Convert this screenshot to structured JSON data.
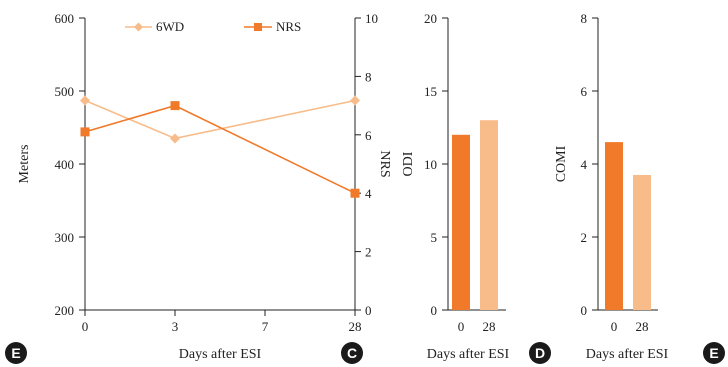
{
  "colors": {
    "dark_orange": "#F07A2A",
    "light_orange": "#F8BC8A",
    "badge": "#1a1a1a",
    "axis": "#222222"
  },
  "chart_data": [
    {
      "id": "line",
      "type": "line",
      "title": "",
      "xlabel": "Days after ESI",
      "ylabel": "Meters",
      "y2label": "NRS",
      "categories": [
        "0",
        "3",
        "7",
        "28"
      ],
      "ylim": [
        200,
        600
      ],
      "y_ticks": [
        "200",
        "300",
        "400",
        "500",
        "600"
      ],
      "y2lim": [
        0,
        10
      ],
      "y2_ticks": [
        "0",
        "2",
        "4",
        "6",
        "8",
        "10"
      ],
      "legend_position": "top",
      "series": [
        {
          "name": "6WD",
          "axis": "left",
          "marker": "diamond",
          "color": "#F8BC8A",
          "points": [
            {
              "x": "0",
              "y": 487
            },
            {
              "x": "3",
              "y": 435
            },
            {
              "x": "28",
              "y": 487
            }
          ]
        },
        {
          "name": "NRS",
          "axis": "right",
          "marker": "square",
          "color": "#F07A2A",
          "points": [
            {
              "x": "0",
              "y": 6.1
            },
            {
              "x": "3",
              "y": 7.0
            },
            {
              "x": "28",
              "y": 4.0
            }
          ]
        }
      ],
      "panel_label": "E",
      "grid": false
    },
    {
      "id": "odi",
      "type": "bar",
      "title": "",
      "ylabel": "ODI",
      "xlabel": "Days after ESI",
      "categories": [
        "0",
        "28"
      ],
      "values": [
        12,
        13
      ],
      "bar_colors": [
        "#F07A2A",
        "#F8BC8A"
      ],
      "ylim": [
        0,
        20
      ],
      "y_ticks": [
        "0",
        "5",
        "10",
        "15",
        "20"
      ],
      "panel_label": "D",
      "grid": false
    },
    {
      "id": "comi",
      "type": "bar",
      "title": "",
      "ylabel": "COMI",
      "xlabel": "Days after ESI",
      "categories": [
        "0",
        "28"
      ],
      "values": [
        4.6,
        3.7
      ],
      "bar_colors": [
        "#F07A2A",
        "#F8BC8A"
      ],
      "ylim": [
        0,
        8
      ],
      "y_ticks": [
        "0",
        "2",
        "4",
        "6",
        "8"
      ],
      "panel_label": "E",
      "grid": false
    }
  ],
  "badges": [
    {
      "letter": "E"
    },
    {
      "letter": "C"
    }
  ]
}
